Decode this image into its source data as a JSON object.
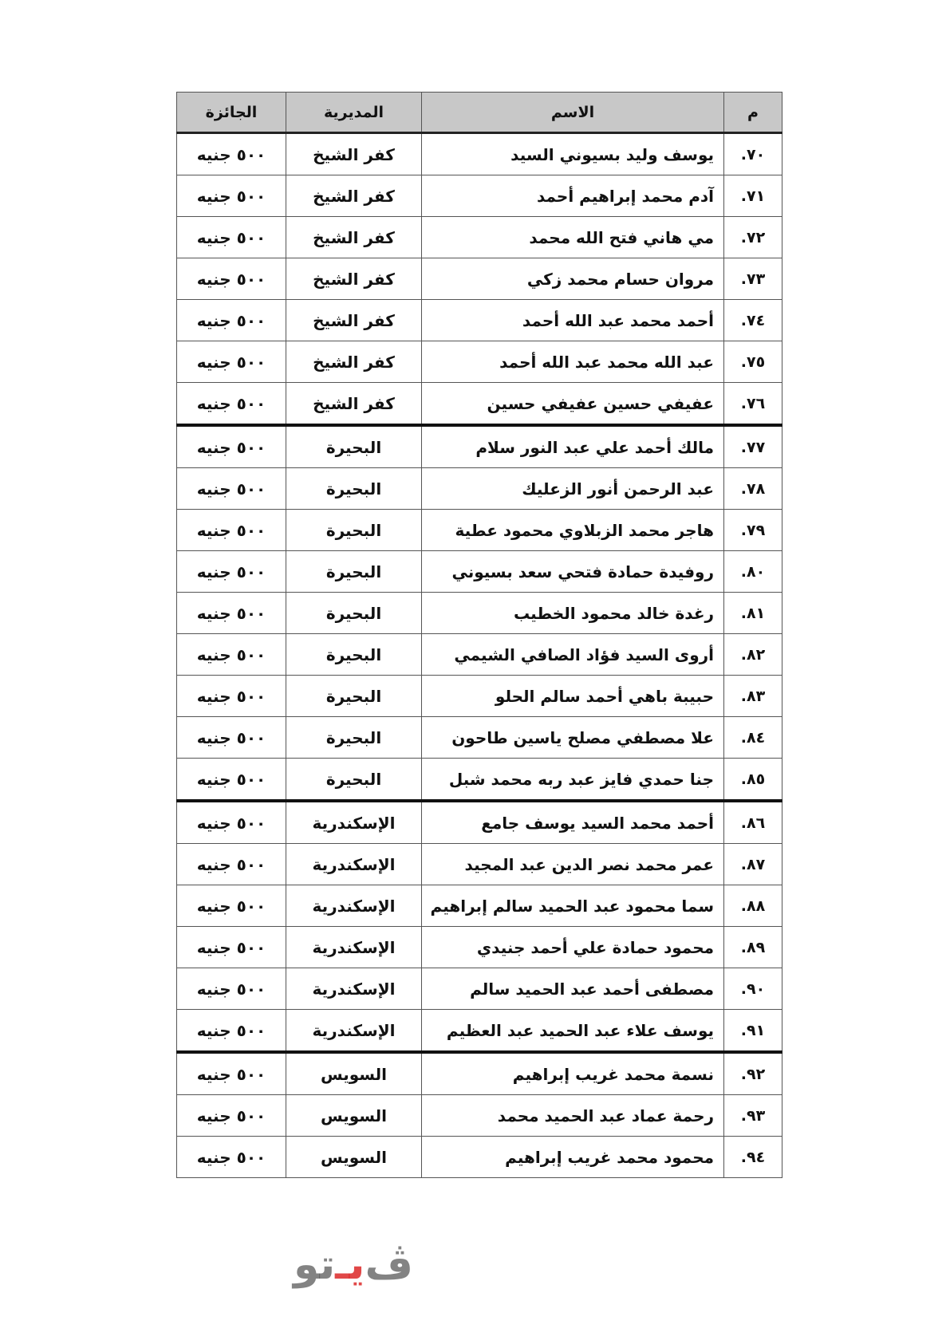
{
  "table": {
    "headers": {
      "index": "م",
      "name": "الاسم",
      "directorate": "المديرية",
      "prize": "الجائزة"
    },
    "rows": [
      {
        "index": "٧٠.",
        "name": "يوسف وليد بسيوني السيد",
        "directorate": "كفر الشيخ",
        "prize": "٥٠٠ جنيه"
      },
      {
        "index": "٧١.",
        "name": "آدم محمد إبراهيم أحمد",
        "directorate": "كفر الشيخ",
        "prize": "٥٠٠ جنيه"
      },
      {
        "index": "٧٢.",
        "name": "مي هاني فتح الله محمد",
        "directorate": "كفر الشيخ",
        "prize": "٥٠٠ جنيه"
      },
      {
        "index": "٧٣.",
        "name": "مروان حسام محمد زكي",
        "directorate": "كفر الشيخ",
        "prize": "٥٠٠ جنيه"
      },
      {
        "index": "٧٤.",
        "name": "أحمد محمد عبد الله أحمد",
        "directorate": "كفر الشيخ",
        "prize": "٥٠٠ جنيه"
      },
      {
        "index": "٧٥.",
        "name": "عبد الله محمد عبد الله أحمد",
        "directorate": "كفر الشيخ",
        "prize": "٥٠٠ جنيه"
      },
      {
        "index": "٧٦.",
        "name": "عفيفي حسين عفيفي حسين",
        "directorate": "كفر الشيخ",
        "prize": "٥٠٠ جنيه",
        "group_end": true
      },
      {
        "index": "٧٧.",
        "name": "مالك أحمد علي عبد النور سلام",
        "directorate": "البحيرة",
        "prize": "٥٠٠ جنيه"
      },
      {
        "index": "٧٨.",
        "name": "عبد الرحمن أنور الزعليك",
        "directorate": "البحيرة",
        "prize": "٥٠٠ جنيه"
      },
      {
        "index": "٧٩.",
        "name": "هاجر محمد الزبلاوي محمود عطية",
        "directorate": "البحيرة",
        "prize": "٥٠٠ جنيه"
      },
      {
        "index": "٨٠.",
        "name": "روفيدة حمادة فتحي سعد بسيوني",
        "directorate": "البحيرة",
        "prize": "٥٠٠ جنيه"
      },
      {
        "index": "٨١.",
        "name": "رغدة خالد محمود الخطيب",
        "directorate": "البحيرة",
        "prize": "٥٠٠ جنيه"
      },
      {
        "index": "٨٢.",
        "name": "أروى السيد فؤاد الصافي الشيمي",
        "directorate": "البحيرة",
        "prize": "٥٠٠ جنيه"
      },
      {
        "index": "٨٣.",
        "name": "حبيبة باهي أحمد سالم الحلو",
        "directorate": "البحيرة",
        "prize": "٥٠٠ جنيه"
      },
      {
        "index": "٨٤.",
        "name": "علا مصطفي مصلح ياسين طاحون",
        "directorate": "البحيرة",
        "prize": "٥٠٠ جنيه"
      },
      {
        "index": "٨٥.",
        "name": "جنا حمدي فايز عبد ربه محمد شبل",
        "directorate": "البحيرة",
        "prize": "٥٠٠ جنيه",
        "group_end": true
      },
      {
        "index": "٨٦.",
        "name": "أحمد محمد السيد يوسف جامع",
        "directorate": "الإسكندرية",
        "prize": "٥٠٠ جنيه"
      },
      {
        "index": "٨٧.",
        "name": "عمر محمد نصر الدين عبد المجيد",
        "directorate": "الإسكندرية",
        "prize": "٥٠٠ جنيه"
      },
      {
        "index": "٨٨.",
        "name": "سما محمود عبد الحميد سالم إبراهيم",
        "directorate": "الإسكندرية",
        "prize": "٥٠٠ جنيه"
      },
      {
        "index": "٨٩.",
        "name": "محمود حمادة علي أحمد جنيدي",
        "directorate": "الإسكندرية",
        "prize": "٥٠٠ جنيه"
      },
      {
        "index": "٩٠.",
        "name": "مصطفى أحمد عبد  الحميد سالم",
        "directorate": "الإسكندرية",
        "prize": "٥٠٠ جنيه"
      },
      {
        "index": "٩١.",
        "name": "يوسف علاء عبد الحميد عبد العظيم",
        "directorate": "الإسكندرية",
        "prize": "٥٠٠ جنيه",
        "group_end": true
      },
      {
        "index": "٩٢.",
        "name": "نسمة محمد غريب إبراهيم",
        "directorate": "السويس",
        "prize": "٥٠٠ جنيه"
      },
      {
        "index": "٩٣.",
        "name": "رحمة عماد عبد الحميد محمد",
        "directorate": "السويس",
        "prize": "٥٠٠ جنيه"
      },
      {
        "index": "٩٤.",
        "name": "محمود محمد غريب إبراهيم",
        "directorate": "السويس",
        "prize": "٥٠٠ جنيه"
      }
    ]
  },
  "watermark": {
    "text_a": "ڤ",
    "text_b": "يـ",
    "text_c": "تو"
  },
  "colors": {
    "header_bg": "#c8c8c8",
    "watermark_accent": "#dc2828"
  }
}
